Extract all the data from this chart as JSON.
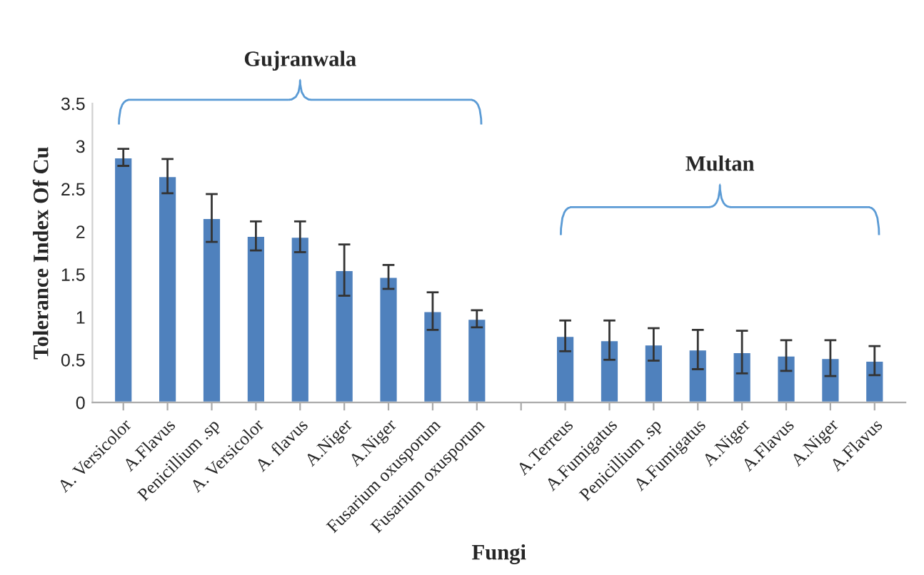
{
  "chart_data": {
    "type": "bar",
    "xlabel": "Fungi",
    "ylabel": "Tolerance Index Of Cu",
    "categories": [
      "A. Versicolor",
      "A.Flavus",
      "Penicillium .sp",
      "A. Versicolor",
      "A. flavus",
      "A.Niger",
      "A.Niger",
      "Fusarium oxusporum",
      "Fusarium oxusporum",
      null,
      "A.Terreus",
      "A.Fumigatus",
      "Penicillium .sp",
      "A.Fumigatus",
      "A.Niger",
      "A.Flavus",
      "A.Niger",
      "A.Flavus"
    ],
    "values": [
      2.87,
      2.65,
      2.16,
      1.95,
      1.94,
      1.55,
      1.47,
      1.07,
      0.98,
      null,
      0.78,
      0.73,
      0.68,
      0.62,
      0.59,
      0.55,
      0.52,
      0.49
    ],
    "errors": [
      0.1,
      0.2,
      0.28,
      0.17,
      0.18,
      0.3,
      0.14,
      0.22,
      0.1,
      null,
      0.18,
      0.23,
      0.19,
      0.23,
      0.25,
      0.18,
      0.21,
      0.17
    ],
    "color": "#4f81bd",
    "ylim": [
      0,
      3.5
    ],
    "yticks": [
      0,
      0.5,
      1,
      1.5,
      2,
      2.5,
      3,
      3.5
    ],
    "annotations": [
      "Gujranwala",
      "Multan"
    ],
    "grid": false,
    "legend": false
  }
}
